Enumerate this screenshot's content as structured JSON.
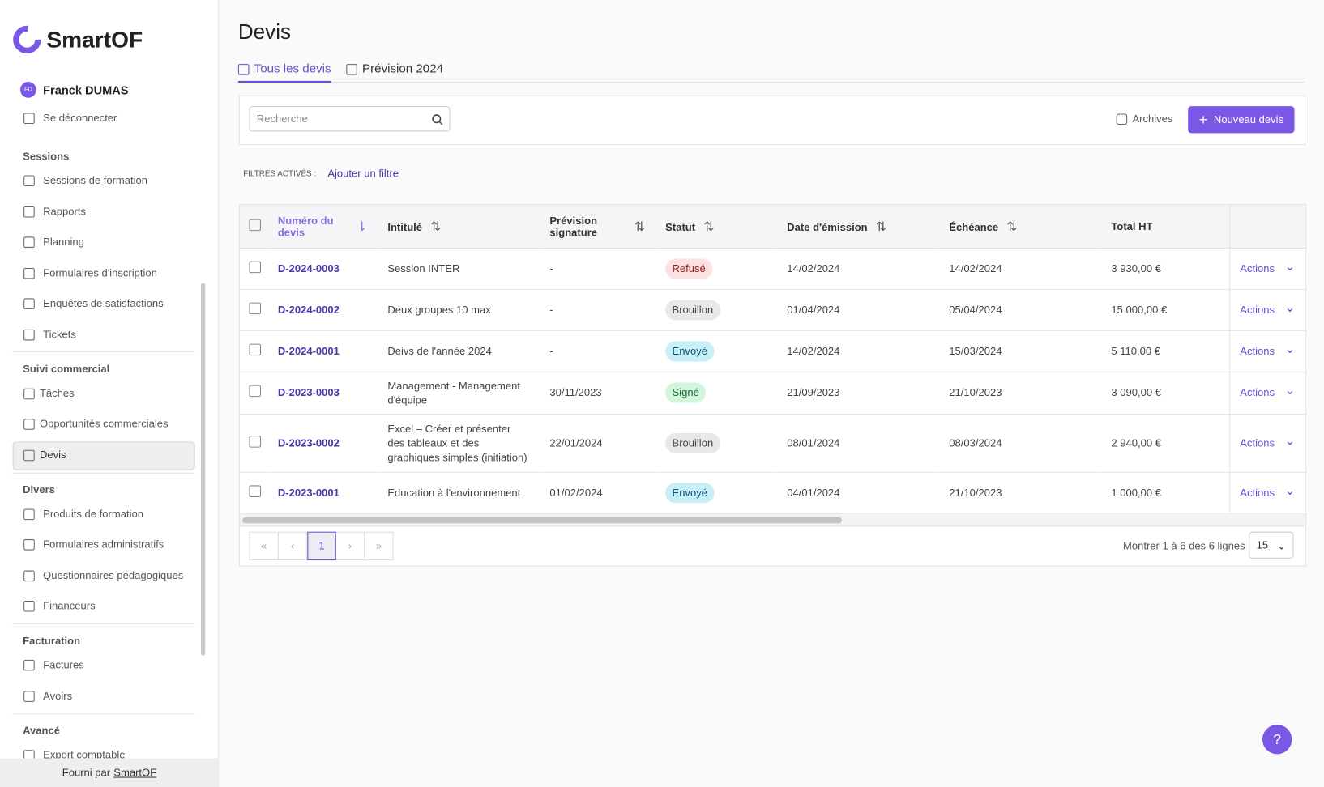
{
  "sidebar": {
    "brand": "SmartOF",
    "user": {
      "initials": "FD",
      "name": "Franck DUMAS"
    },
    "logout": "Se déconnecter",
    "sections": [
      {
        "title": "Sessions",
        "items": [
          "Sessions de formation",
          "Rapports",
          "Planning",
          "Formulaires d'inscription",
          "Enquêtes de satisfactions",
          "Tickets"
        ]
      },
      {
        "title": "Suivi commercial",
        "items": [
          "Tâches",
          "Opportunités commerciales",
          "Devis"
        ]
      },
      {
        "title": "Divers",
        "items": [
          "Produits de formation",
          "Formulaires administratifs",
          "Questionnaires pédagogiques",
          "Financeurs"
        ]
      },
      {
        "title": "Facturation",
        "items": [
          "Factures",
          "Avoirs"
        ]
      },
      {
        "title": "Avancé",
        "items": [
          "Export comptable"
        ]
      }
    ],
    "footer": {
      "prefix": "Fourni par",
      "link": "SmartOF"
    }
  },
  "page": {
    "title": "Devis",
    "tabs": [
      "Tous les devis",
      "Prévision 2024"
    ]
  },
  "toolbar": {
    "search_placeholder": "Recherche",
    "archives": "Archives",
    "new_button": "Nouveau devis"
  },
  "filters": {
    "label": "FILTRES ACTIVÉS :",
    "add": "Ajouter un filtre"
  },
  "table": {
    "headers": [
      "Numéro du devis",
      "Intitulé",
      "Prévision signature",
      "Statut",
      "Date d'émission",
      "Échéance",
      "Total HT"
    ],
    "actions_label": "Actions",
    "rows": [
      {
        "number": "D-2024-0003",
        "title": "Session INTER",
        "forecast": "-",
        "status": "Refusé",
        "issued": "14/02/2024",
        "due": "14/02/2024",
        "total": "3 930,00 €"
      },
      {
        "number": "D-2024-0002",
        "title": "Deux groupes 10 max",
        "forecast": "-",
        "status": "Brouillon",
        "issued": "01/04/2024",
        "due": "05/04/2024",
        "total": "15 000,00 €"
      },
      {
        "number": "D-2024-0001",
        "title": "Deivs de l'année 2024",
        "forecast": "-",
        "status": "Envoyé",
        "issued": "14/02/2024",
        "due": "15/03/2024",
        "total": "5 110,00 €"
      },
      {
        "number": "D-2023-0003",
        "title": "Management - Management d'équipe",
        "forecast": "30/11/2023",
        "status": "Signé",
        "issued": "21/09/2023",
        "due": "21/10/2023",
        "total": "3 090,00 €"
      },
      {
        "number": "D-2023-0002",
        "title": "Excel – Créer et présenter des tableaux et des graphiques simples (initiation)",
        "forecast": "22/01/2024",
        "status": "Brouillon",
        "issued": "08/01/2024",
        "due": "08/03/2024",
        "total": "2 940,00 €"
      },
      {
        "number": "D-2023-0001",
        "title": "Education à l'environnement",
        "forecast": "01/02/2024",
        "status": "Envoyé",
        "issued": "04/01/2024",
        "due": "21/10/2023",
        "total": "1 000,00 €"
      }
    ]
  },
  "pagination": {
    "current": "1",
    "summary": "Montrer 1 à 6 des 6 lignes",
    "page_size": "15"
  },
  "help": "?"
}
